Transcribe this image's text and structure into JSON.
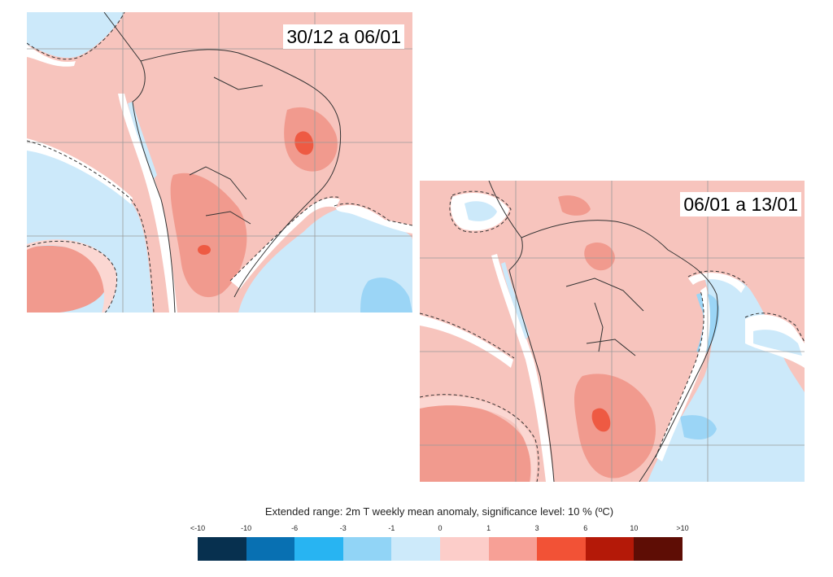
{
  "maps": [
    {
      "label": "30/12 a 06/01"
    },
    {
      "label": "06/01 a 13/01"
    }
  ],
  "legend": {
    "title": "Extended range: 2m T weekly mean anomaly, significance level: 10 % (ºC)",
    "ticks": [
      "<-10",
      "-10",
      "-6",
      "-3",
      "-1",
      "0",
      "1",
      "3",
      "6",
      "10",
      ">10"
    ],
    "colors": [
      "#07304f",
      "#0870b2",
      "#28b4f2",
      "#91d4f6",
      "#cdeafa",
      "#fccdc9",
      "#f7a096",
      "#f25236",
      "#b41908",
      "#5e0d05"
    ]
  },
  "colors": {
    "warm_light": "#f7c4bd",
    "warm_mid": "#f19a8e",
    "warm_strong": "#ee5a43",
    "cool_light": "#cce9fa",
    "cool_mid": "#9bd5f6",
    "white_band": "#ffffff",
    "grid": "#9a9a9a",
    "coast": "#333333"
  }
}
